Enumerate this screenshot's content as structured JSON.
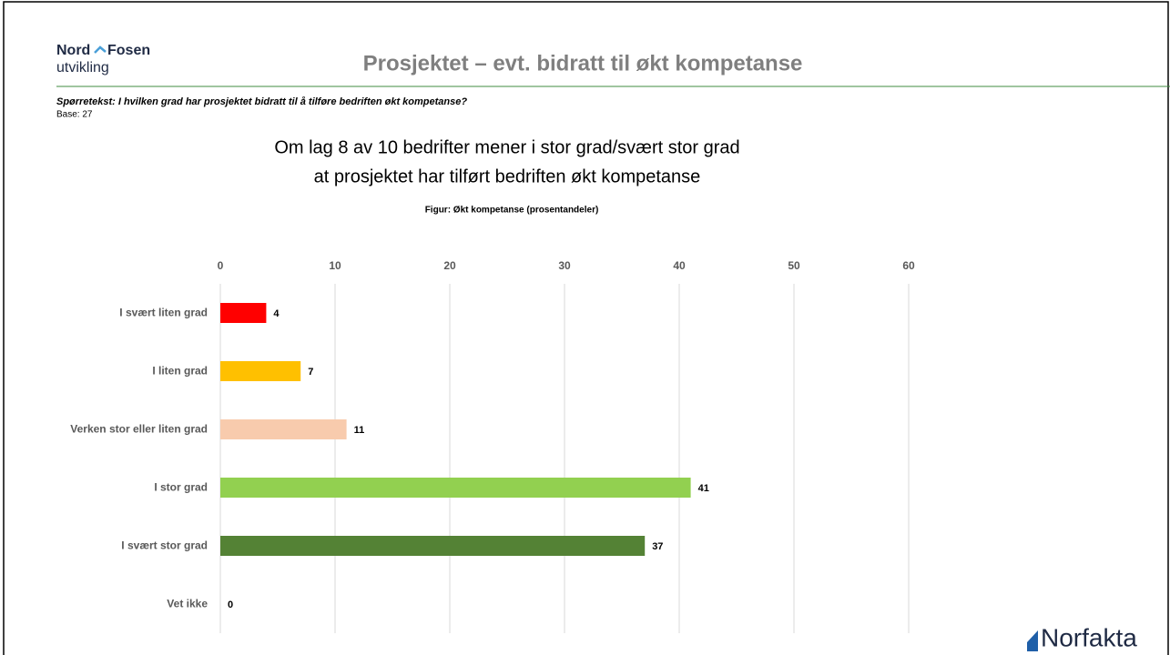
{
  "logo": {
    "line1a": "Nord",
    "line1b": "Fosen",
    "line2": "utvikling"
  },
  "slide_title": "Prosjektet – evt. bidratt til økt kompetanse",
  "question": "Spørretekst: I hvilken grad har prosjektet bidratt til å tilføre bedriften økt kompetanse?",
  "base": "Base: 27",
  "brand": "Norfakta",
  "chart_data": {
    "type": "hbar",
    "title_lines": [
      "Om lag 8 av 10 bedrifter mener i stor grad/svært stor grad",
      "at prosjektet har tilført bedriften økt kompetanse"
    ],
    "subtitle": "Figur: Økt kompetanse (prosentandeler)",
    "categories": [
      "I svært liten grad",
      "I liten grad",
      "Verken stor eller liten grad",
      "I stor grad",
      "I svært stor grad",
      "Vet ikke"
    ],
    "values": [
      4,
      7,
      11,
      41,
      37,
      0
    ],
    "colors": [
      "#ff0000",
      "#ffc000",
      "#f8cbad",
      "#92d050",
      "#548235",
      "#a5a5a5"
    ],
    "xlim": [
      0,
      60
    ],
    "xticks": [
      0,
      10,
      20,
      30,
      40,
      50,
      60
    ],
    "grid": true
  }
}
